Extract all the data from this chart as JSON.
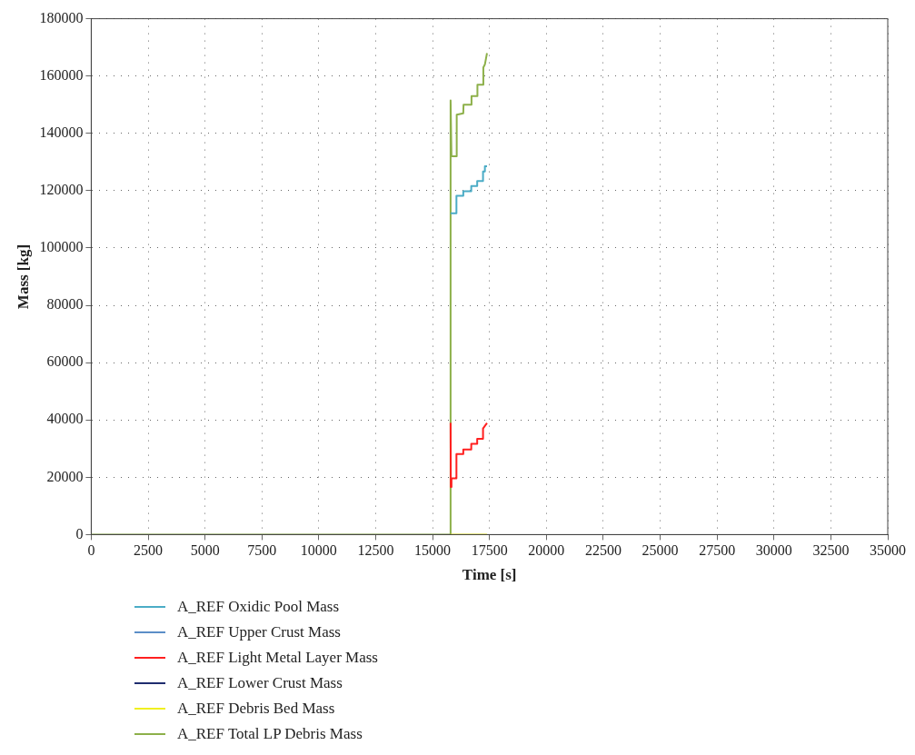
{
  "chart_data": {
    "type": "line",
    "xlabel": "Time [s]",
    "ylabel": "Mass [kg]",
    "xlim": [
      0,
      35000
    ],
    "xticks": [
      0,
      2500,
      5000,
      7500,
      10000,
      12500,
      15000,
      17500,
      20000,
      22500,
      25000,
      27500,
      30000,
      32500,
      35000
    ],
    "ylim": [
      0,
      180000
    ],
    "yticks": [
      0,
      20000,
      40000,
      60000,
      80000,
      100000,
      120000,
      140000,
      160000,
      180000
    ],
    "grid": true,
    "legend": "bottom",
    "marker": "none",
    "line_style": "solid",
    "series": [
      {
        "name": "A_REF Oxidic Pool Mass",
        "color": "#4bacc6",
        "x": [
          15791,
          16047,
          16048,
          16348,
          16349,
          16698,
          16699,
          16959,
          16960,
          17215,
          17216,
          17297,
          17298,
          17391
        ],
        "values": [
          112100,
          112100,
          118200,
          118200,
          119800,
          119800,
          121600,
          121600,
          123400,
          123400,
          126700,
          126700,
          128500,
          128500
        ]
      },
      {
        "name": "A_REF Upper Crust Mass",
        "color": "#5b8ec7"
      },
      {
        "name": "A_REF Light Metal Layer Mass",
        "color": "#ff2020",
        "x": [
          15791,
          15800,
          15830,
          16047,
          16048,
          16348,
          16349,
          16698,
          16699,
          16959,
          16960,
          17215,
          17216,
          17391
        ],
        "values": [
          39000,
          16600,
          19600,
          19600,
          28100,
          28100,
          29700,
          29700,
          31700,
          31700,
          33400,
          33400,
          37000,
          38900
        ]
      },
      {
        "name": "A_REF Lower Crust Mass",
        "color": "#1f2d6e"
      },
      {
        "name": "A_REF Debris Bed Mass",
        "color": "#f0f020",
        "x": [
          15791,
          17391
        ],
        "values": [
          0,
          0
        ]
      },
      {
        "name": "A_REF Total LP Debris Mass",
        "color": "#8db04a",
        "x": [
          0,
          15780,
          15791,
          15830,
          16047,
          16060,
          16348,
          16360,
          16698,
          16710,
          16959,
          16970,
          17215,
          17230,
          17297,
          17391
        ],
        "values": [
          0,
          0,
          151500,
          132000,
          132000,
          146500,
          147000,
          150000,
          150000,
          153000,
          153000,
          157000,
          157000,
          163000,
          164000,
          168000
        ]
      }
    ]
  }
}
